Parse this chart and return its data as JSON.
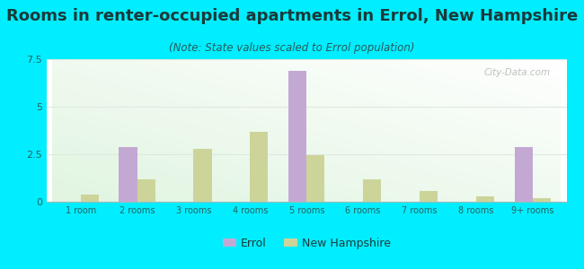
{
  "title": "Rooms in renter-occupied apartments in Errol, New Hampshire",
  "subtitle": "(Note: State values scaled to Errol population)",
  "categories": [
    "1 room",
    "2 rooms",
    "3 rooms",
    "4 rooms",
    "5 rooms",
    "6 rooms",
    "7 rooms",
    "8 rooms",
    "9+ rooms"
  ],
  "errol_values": [
    0,
    2.9,
    0,
    0,
    6.9,
    0,
    0,
    0,
    2.9
  ],
  "nh_values": [
    0.4,
    1.2,
    2.8,
    3.7,
    2.45,
    1.2,
    0.55,
    0.3,
    0.2
  ],
  "errol_color": "#c4a8d4",
  "nh_color": "#ccd49a",
  "ylim": [
    0,
    7.5
  ],
  "yticks": [
    0,
    2.5,
    5,
    7.5
  ],
  "background_color": "#00eeff",
  "title_fontsize": 13,
  "subtitle_fontsize": 8.5,
  "bar_width": 0.32,
  "legend_errol": "Errol",
  "legend_nh": "New Hampshire",
  "title_color": "#1a3a3a",
  "subtitle_color": "#2a5a5a",
  "tick_color": "#2a6060",
  "grid_color": "#e0e8e0",
  "watermark": "City-Data.com"
}
